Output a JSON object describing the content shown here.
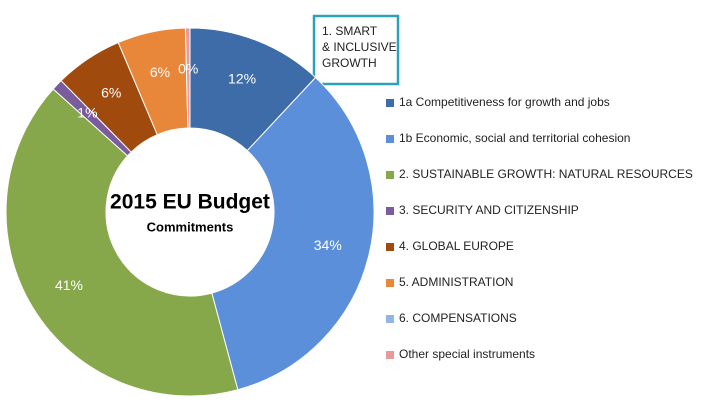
{
  "chart_data": {
    "type": "donut",
    "title": "2015 EU Budget",
    "subtitle": "Commitments",
    "annotation": [
      "1. SMART",
      "& INCLUSIVE",
      "GROWTH"
    ],
    "categories": [
      "1a Competitiveness for growth and jobs",
      "1b Economic, social and territorial cohesion",
      "2. SUSTAINABLE GROWTH: NATURAL RESOURCES",
      "3. SECURITY AND CITIZENSHIP",
      "4. GLOBAL EUROPE",
      "5. ADMINISTRATION",
      "6. COMPENSATIONS",
      "Other special instruments"
    ],
    "values": [
      12,
      34,
      41,
      1,
      6,
      6,
      0,
      0.4
    ],
    "value_labels": [
      "12%",
      "34%",
      "41%",
      "1%",
      "6%",
      "6%",
      null,
      "0%"
    ],
    "colors": [
      "#3d6ca8",
      "#5b8fd9",
      "#86a84a",
      "#7a5c9c",
      "#a04a0e",
      "#e8873a",
      "#92b6e0",
      "#e89a9a"
    ]
  }
}
